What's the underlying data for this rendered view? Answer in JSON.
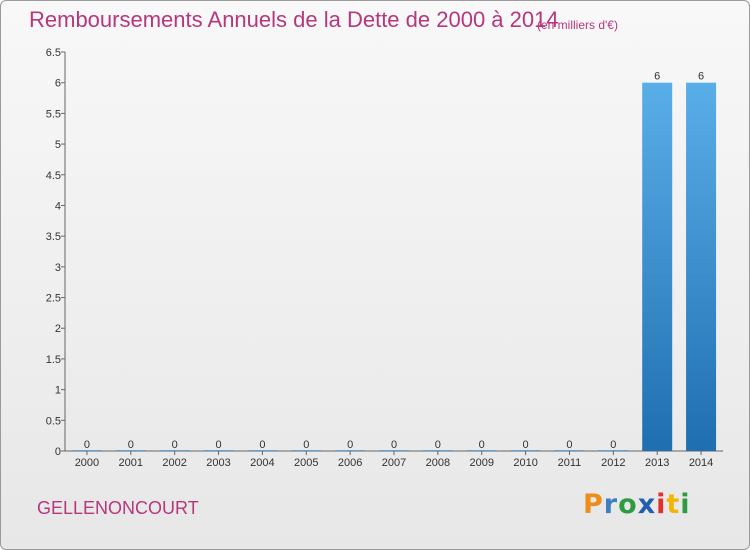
{
  "header": {
    "title": "Remboursements Annuels de la Dette de 2000 à 2014",
    "subtitle": "(en milliers d'€)"
  },
  "footer": {
    "city": "GELLENONCOURT",
    "logo": "Proxiti"
  },
  "colors": {
    "title": "#b7377d",
    "bar_top": "#5aaee8",
    "bar_bottom": "#1f6fb0"
  },
  "chart_data": {
    "type": "bar",
    "title": "Remboursements Annuels de la Dette de 2000 à 2014",
    "subtitle": "(en milliers d'€)",
    "categories": [
      "2000",
      "2001",
      "2002",
      "2003",
      "2004",
      "2005",
      "2006",
      "2007",
      "2008",
      "2009",
      "2010",
      "2011",
      "2012",
      "2013",
      "2014"
    ],
    "values": [
      0,
      0,
      0,
      0,
      0,
      0,
      0,
      0,
      0,
      0,
      0,
      0,
      0,
      6,
      6
    ],
    "data_labels": [
      "0",
      "0",
      "0",
      "0",
      "0",
      "0",
      "0",
      "0",
      "0",
      "0",
      "0",
      "0",
      "0",
      "6",
      "6"
    ],
    "y_ticks": [
      "0",
      "0.5",
      "1",
      "1.5",
      "2",
      "2.5",
      "3",
      "3.5",
      "4",
      "4.5",
      "5",
      "5.5",
      "6",
      "6.5"
    ],
    "ylim": [
      0,
      6.5
    ],
    "xlabel": "",
    "ylabel": "",
    "grid": false,
    "legend": "none"
  }
}
